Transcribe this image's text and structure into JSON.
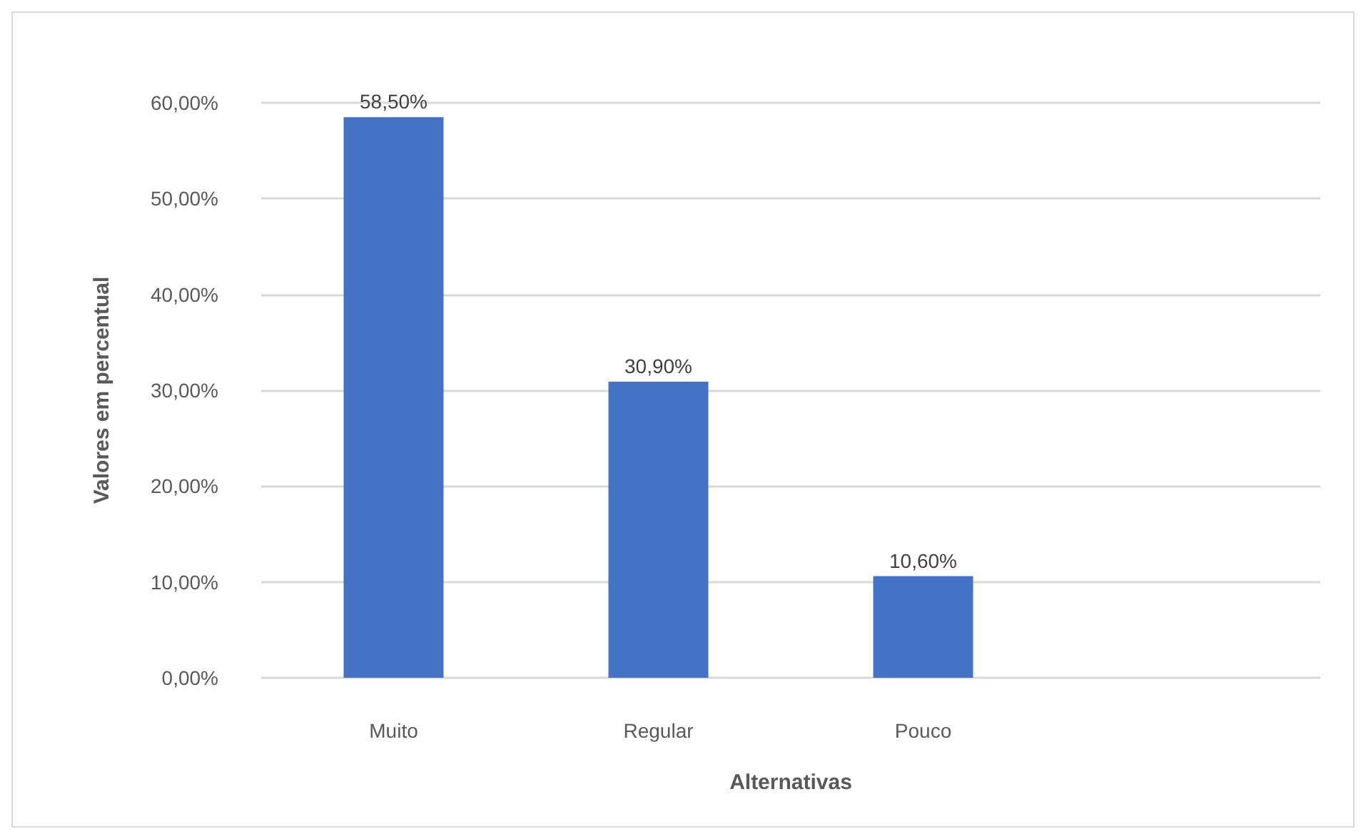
{
  "chart_data": {
    "type": "bar",
    "categories": [
      "Muito",
      "Regular",
      "Pouco"
    ],
    "values": [
      58.5,
      30.9,
      10.6
    ],
    "color": "#4472c4",
    "value_labels": [
      "58,50%",
      "30,90%",
      "10,60%"
    ],
    "xlabel": "Alternativas",
    "ylabel": "Valores em percentual",
    "ylim": [
      0,
      60
    ],
    "yticks": [
      {
        "value": 0,
        "label": "0,00%"
      },
      {
        "value": 10,
        "label": "10,00%"
      },
      {
        "value": 20,
        "label": "20,00%"
      },
      {
        "value": 30,
        "label": "30,00%"
      },
      {
        "value": 40,
        "label": "40,00%"
      },
      {
        "value": 50,
        "label": "50,00%"
      },
      {
        "value": 60,
        "label": "60,00%"
      }
    ],
    "grid": "y"
  }
}
